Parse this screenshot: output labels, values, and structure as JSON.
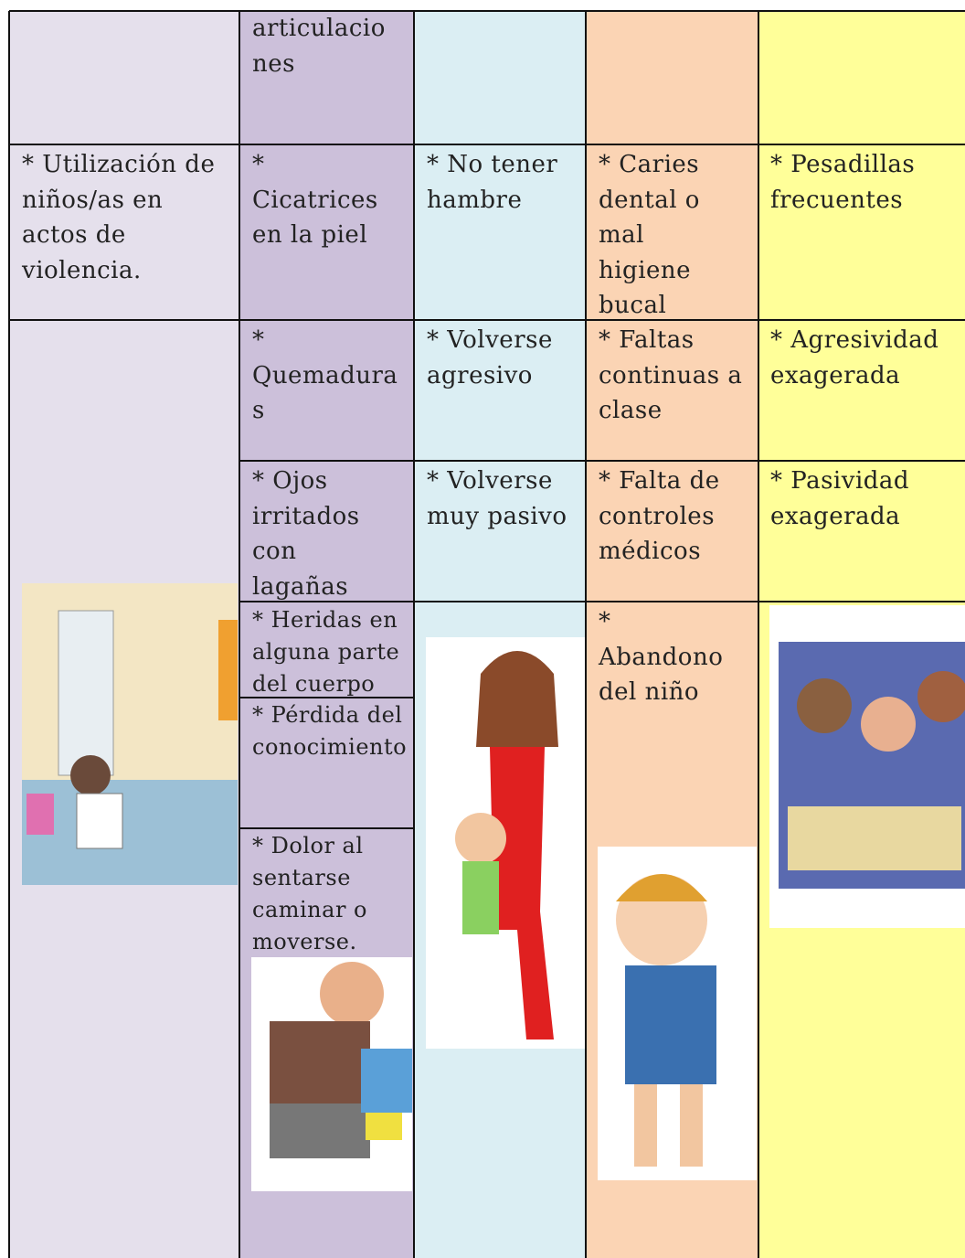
{
  "table": {
    "rows": [
      [
        "articulaciones"
      ],
      [
        "* Utilización de niños/as en actos de violencia.",
        "* Cicatrices en la piel",
        "* No tener hambre",
        "* Caries dental o mal higiene bucal",
        "* Pesadillas frecuentes"
      ],
      [
        "* Quemaduras",
        "* Volverse agresivo",
        "* Faltas continuas a clase",
        "* Agresividad exagerada"
      ],
      [
        "* Ojos irritados con lagañas",
        "* Volverse muy pasivo",
        "* Falta de controles médicos",
        "* Pasividad exagerada"
      ],
      [
        "* Heridas en alguna parte del cuerpo",
        "* Pérdida del conocimiento",
        "* Dolor al sentarse caminar o moverse.",
        "* Abandono del niño"
      ]
    ]
  }
}
